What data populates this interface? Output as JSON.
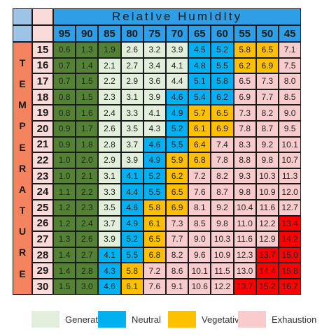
{
  "chart_data": {
    "type": "heatmap",
    "title": "RelatIve HumIdIty",
    "row_axis_label": "TEMPERATURE",
    "x": [
      95,
      90,
      85,
      80,
      75,
      70,
      65,
      60,
      55,
      50,
      45
    ],
    "y": [
      15,
      16,
      17,
      18,
      19,
      20,
      21,
      22,
      23,
      24,
      25,
      26,
      27,
      28,
      29,
      30
    ],
    "values": [
      [
        0.6,
        1.3,
        1.9,
        2.6,
        3.2,
        3.9,
        4.5,
        5.2,
        5.8,
        6.5,
        7.1
      ],
      [
        0.7,
        1.4,
        2.1,
        2.7,
        3.4,
        4.1,
        4.8,
        5.5,
        6.2,
        6.9,
        7.5
      ],
      [
        0.7,
        1.5,
        2.2,
        2.9,
        3.6,
        4.4,
        5.1,
        5.8,
        6.5,
        7.3,
        8.0
      ],
      [
        0.8,
        1.5,
        2.3,
        3.1,
        3.9,
        4.6,
        5.4,
        6.2,
        6.9,
        7.7,
        8.5
      ],
      [
        0.8,
        1.6,
        2.4,
        3.3,
        4.1,
        4.9,
        5.7,
        6.5,
        7.3,
        8.2,
        9.0
      ],
      [
        0.9,
        1.7,
        2.6,
        3.5,
        4.3,
        5.2,
        6.1,
        6.9,
        7.8,
        8.7,
        9.5
      ],
      [
        0.9,
        1.8,
        2.8,
        3.7,
        4.6,
        5.5,
        6.4,
        7.4,
        8.3,
        9.2,
        10.1
      ],
      [
        1.0,
        2.0,
        2.9,
        3.9,
        4.9,
        5.9,
        6.8,
        7.8,
        8.8,
        9.8,
        10.7
      ],
      [
        1.0,
        2.1,
        3.1,
        4.1,
        5.2,
        6.2,
        7.2,
        8.2,
        9.3,
        10.3,
        11.3
      ],
      [
        1.1,
        2.2,
        3.3,
        4.4,
        5.5,
        6.5,
        7.6,
        8.7,
        9.8,
        10.9,
        12.0
      ],
      [
        1.2,
        2.3,
        3.5,
        4.6,
        5.8,
        6.9,
        8.1,
        9.2,
        10.4,
        11.6,
        12.7
      ],
      [
        1.2,
        2.4,
        3.7,
        4.9,
        6.1,
        7.3,
        8.5,
        9.8,
        11.0,
        12.2,
        13.4
      ],
      [
        1.3,
        2.6,
        3.9,
        5.2,
        6.5,
        7.7,
        9.0,
        10.3,
        11.6,
        12.9,
        14.2
      ],
      [
        1.4,
        2.7,
        4.1,
        5.5,
        6.8,
        8.2,
        9.6,
        10.9,
        12.3,
        13.7,
        15.0
      ],
      [
        1.4,
        2.8,
        4.3,
        5.8,
        7.2,
        8.6,
        10.1,
        11.5,
        13.0,
        14.4,
        15.8
      ],
      [
        1.5,
        3.0,
        4.6,
        6.1,
        7.6,
        9.1,
        10.6,
        12.2,
        13.7,
        15.2,
        16.7
      ]
    ],
    "categories_by_cell": [
      [
        "DG",
        "DG",
        "DG",
        "G",
        "G",
        "G",
        "N",
        "N",
        "V",
        "V",
        "E"
      ],
      [
        "DG",
        "DG",
        "G",
        "G",
        "G",
        "G",
        "N",
        "N",
        "V",
        "V",
        "E"
      ],
      [
        "DG",
        "DG",
        "G",
        "G",
        "G",
        "G",
        "N",
        "N",
        "E",
        "E",
        "E"
      ],
      [
        "DG",
        "DG",
        "G",
        "G",
        "G",
        "N",
        "N",
        "N",
        "E",
        "E",
        "E"
      ],
      [
        "DG",
        "DG",
        "G",
        "G",
        "G",
        "N",
        "V",
        "V",
        "E",
        "E",
        "E"
      ],
      [
        "DG",
        "DG",
        "G",
        "G",
        "G",
        "N",
        "V",
        "V",
        "E",
        "E",
        "E"
      ],
      [
        "DG",
        "DG",
        "G",
        "G",
        "N",
        "N",
        "V",
        "E",
        "E",
        "E",
        "E"
      ],
      [
        "DG",
        "DG",
        "G",
        "G",
        "N",
        "V",
        "V",
        "E",
        "E",
        "E",
        "E"
      ],
      [
        "DG",
        "DG",
        "G",
        "N",
        "N",
        "V",
        "E",
        "E",
        "E",
        "E",
        "E"
      ],
      [
        "DG",
        "DG",
        "G",
        "N",
        "N",
        "V",
        "E",
        "E",
        "E",
        "E",
        "E"
      ],
      [
        "DG",
        "DG",
        "G",
        "N",
        "V",
        "V",
        "E",
        "E",
        "E",
        "E",
        "E"
      ],
      [
        "DG",
        "DG",
        "G",
        "N",
        "V",
        "E",
        "E",
        "E",
        "E",
        "E",
        "R"
      ],
      [
        "DG",
        "DG",
        "G",
        "N",
        "V",
        "E",
        "E",
        "E",
        "E",
        "E",
        "R"
      ],
      [
        "DG",
        "DG",
        "N",
        "N",
        "V",
        "E",
        "E",
        "E",
        "E",
        "R",
        "R"
      ],
      [
        "DG",
        "DG",
        "N",
        "V",
        "E",
        "E",
        "E",
        "E",
        "E",
        "R",
        "R"
      ],
      [
        "DG",
        "DG",
        "N",
        "V",
        "E",
        "E",
        "E",
        "E",
        "R",
        "R",
        "R"
      ]
    ],
    "category_colors": {
      "DG": "#548235",
      "G": "#e2efda",
      "N": "#00b0f0",
      "V": "#ffc000",
      "E": "#f8cbcd",
      "R": "#ff0000"
    },
    "header_colors": {
      "title_bg": "#2e9fe6",
      "corner_left": "#9dc3e6",
      "corner_right": "#fbdada",
      "row_axis_bg": "#f4845f",
      "row_header_bg": "#fbdada"
    },
    "legend": [
      {
        "label": "Generative",
        "color": "#e2efda"
      },
      {
        "label": "Neutral",
        "color": "#00b0f0"
      },
      {
        "label": "Vegetative",
        "color": "#ffc000"
      },
      {
        "label": "Exhaustion",
        "color": "#f8cbcd"
      }
    ]
  }
}
